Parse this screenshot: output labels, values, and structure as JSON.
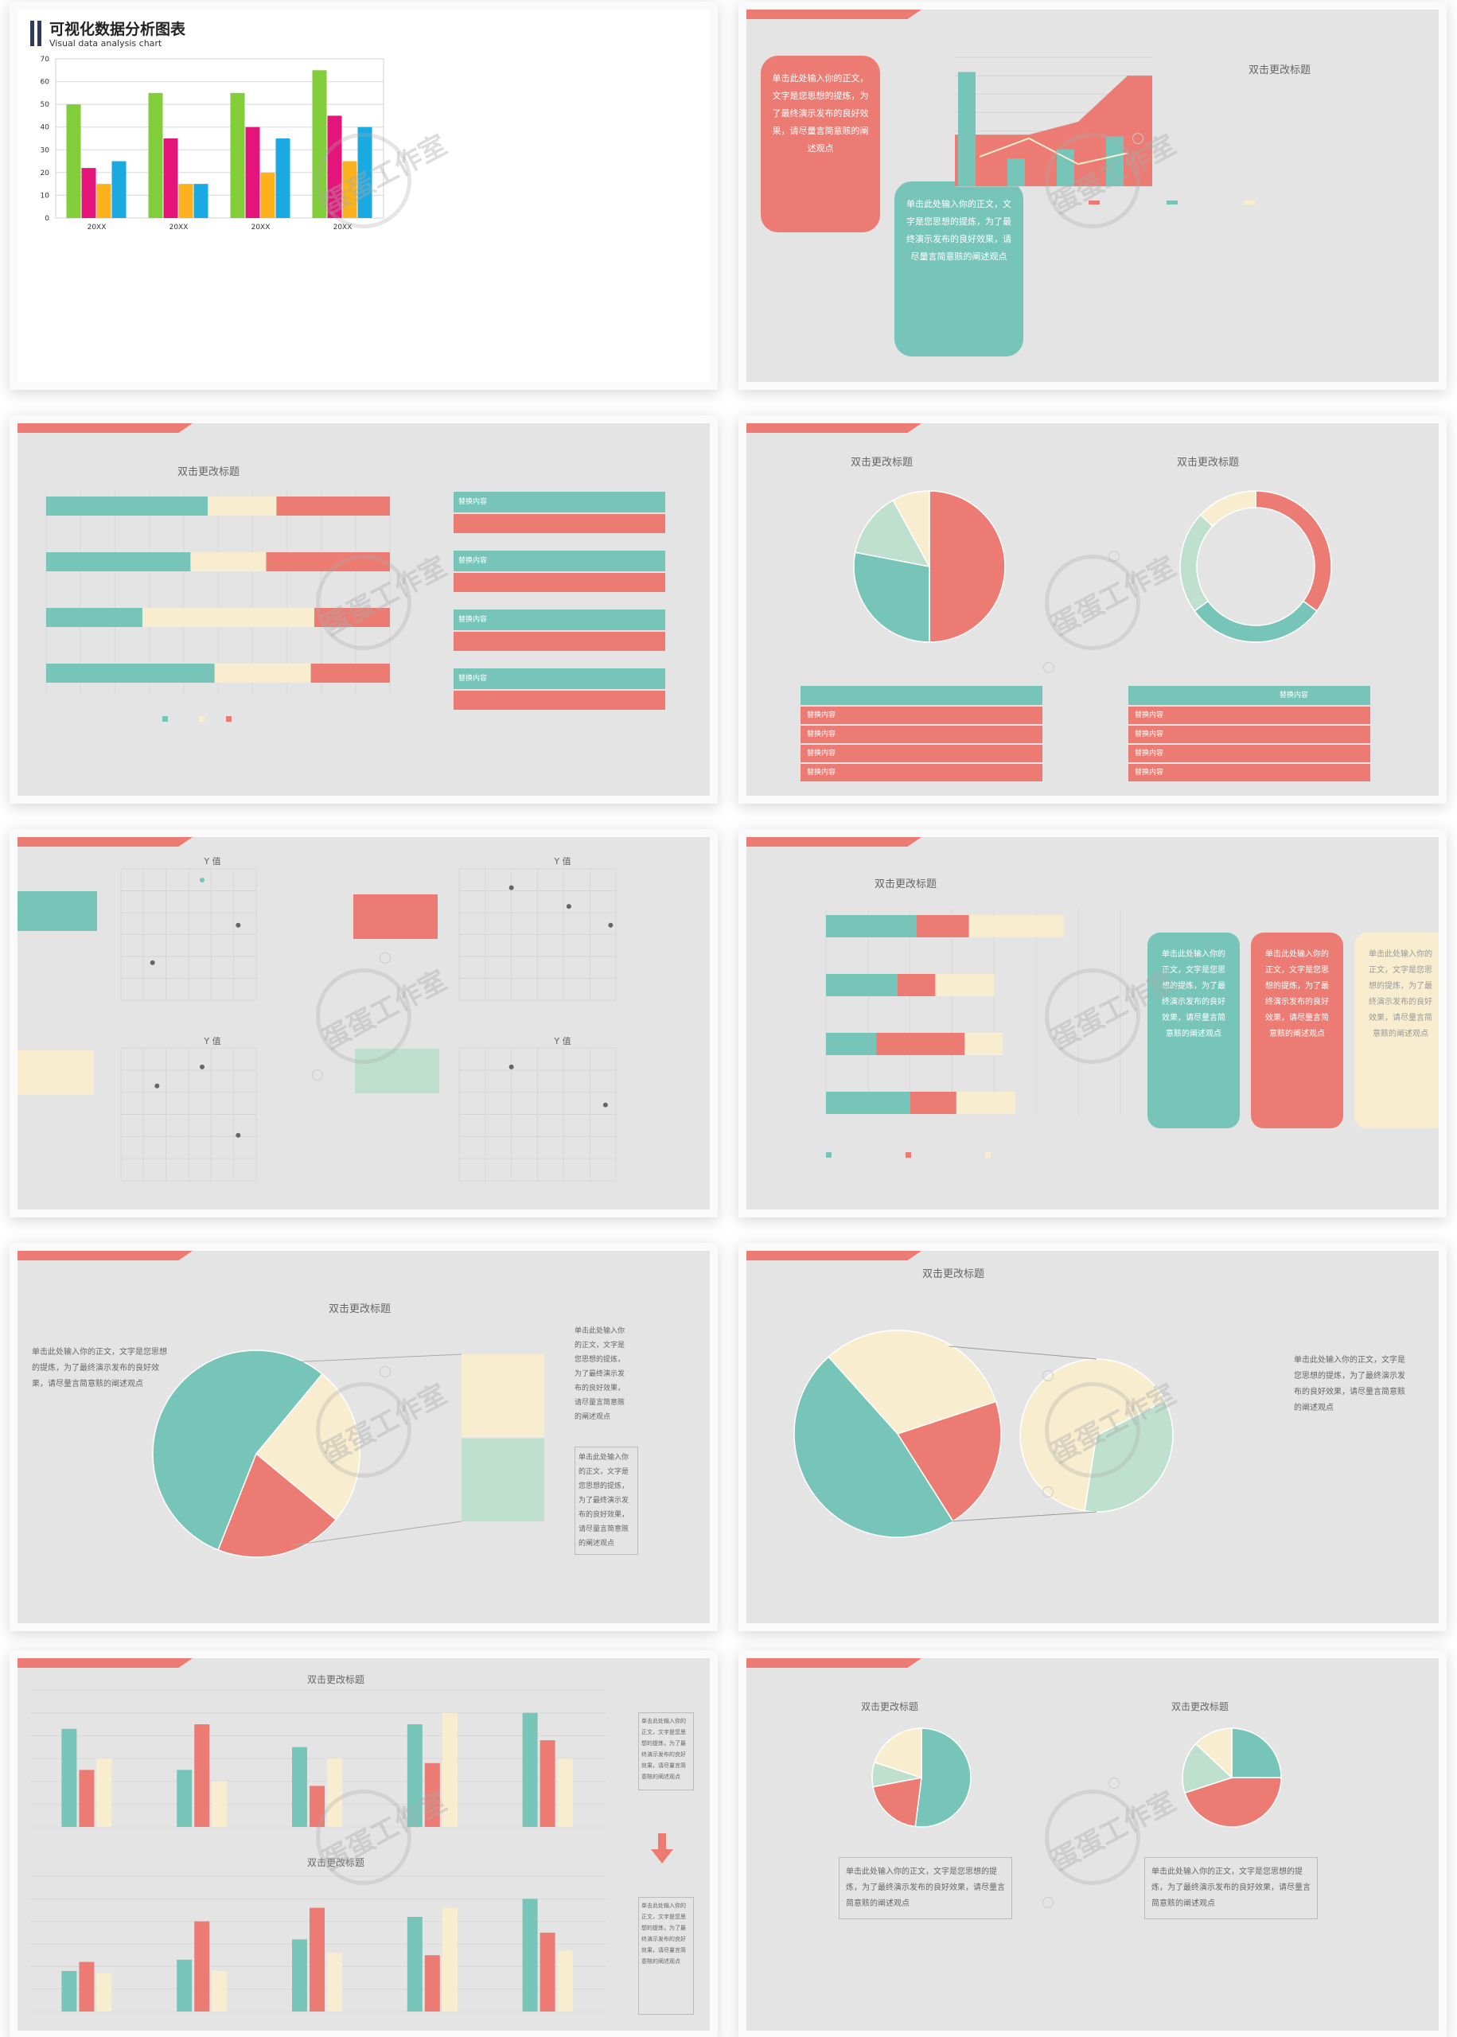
{
  "watermark": "蛋蛋工作室",
  "colors": {
    "teal": "#77c5b9",
    "coral": "#ec7c73",
    "cream": "#f8edcf",
    "mint": "#bfe0cf",
    "green": "#82cd3a",
    "magenta": "#e4157a",
    "orange": "#fbb21c",
    "blue": "#1aa9e0"
  },
  "slides": {
    "s1": {
      "title": "可视化数据分析图表",
      "subtitle": "Visual data analysis chart"
    },
    "s2": {
      "title": "双击更改标题",
      "bubble_coral": "单击此处输入你的正文，文字是您思想的提炼，为了最终演示发布的良好效果，请尽量言简意赅的阐述观点",
      "bubble_teal": "单击此处输入你的正文，文字是您思想的提炼，为了最终演示发布的良好效果，请尽量言简意赅的阐述观点"
    },
    "s3": {
      "title": "双击更改标题",
      "table_header": "替换内容"
    },
    "s4": {
      "title_left": "双击更改标题",
      "title_right": "双击更改标题",
      "table_header_right": "替换内容",
      "table_cell": "替换内容"
    },
    "s5": {
      "chart_title": "Y 值"
    },
    "s6": {
      "title": "双击更改标题",
      "card_text": "单击此处输入你的正文，文字是您思想的提炼，为了最终演示发布的良好效果，请尽量言简意赅的阐述观点"
    },
    "s7": {
      "title": "双击更改标题",
      "left_text": "单击此处输入你的正文，文字是您思想的提炼，为了最终演示发布的良好效果，请尽量言简意赅的阐述观点",
      "right_text_1": "单击此处输入你的正文，文字是您思想的提炼，为了最终演示发布的良好效果，请尽量言简意赅的阐述观点",
      "right_text_2": "单击此处输入你的正文，文字是您思想的提炼，为了最终演示发布的良好效果，请尽量言简意赅的阐述观点"
    },
    "s8": {
      "title": "双击更改标题",
      "text": "单击此处输入你的正文，文字是您思想的提炼，为了最终演示发布的良好效果，请尽量言简意赅的阐述观点"
    },
    "s9": {
      "title": "双击更改标题",
      "title2": "双击更改标题",
      "side_text": "单击此处输入你的正文，文字是您思想的提炼，为了最终演示发布的良好效果，请尽量言简意赅的阐述观点"
    },
    "s10": {
      "title_left": "双击更改标题",
      "title_right": "双击更改标题",
      "text_left": "单击此处输入你的正文，文字是您思想的提炼，为了最终演示发布的良好效果，请尽量言简意赅的阐述观点",
      "text_right": "单击此处输入你的正文，文字是您思想的提炼，为了最终演示发布的良好效果，请尽量言简意赅的阐述观点"
    }
  },
  "chart_data": [
    {
      "type": "bar",
      "title": "可视化数据分析图表",
      "categories": [
        "20XX",
        "20XX",
        "20XX",
        "20XX"
      ],
      "series": [
        {
          "values": [
            50,
            55,
            55,
            65
          ],
          "color": "#82cd3a"
        },
        {
          "values": [
            22,
            35,
            40,
            45
          ],
          "color": "#e4157a"
        },
        {
          "values": [
            15,
            15,
            20,
            25
          ],
          "color": "#fbb21c"
        },
        {
          "values": [
            25,
            15,
            35,
            40
          ],
          "color": "#1aa9e0"
        }
      ],
      "ylim": [
        0,
        70
      ],
      "yticks": [
        0,
        10,
        20,
        30,
        40,
        50,
        60,
        70
      ],
      "grid": true
    },
    {
      "type": "bar",
      "title": "双击更改标题",
      "series": [
        {
          "kind": "bar",
          "values": [
            6.2,
            1.5,
            2.0,
            2.7
          ],
          "color": "#77c5b9"
        },
        {
          "kind": "area",
          "values": [
            2.8,
            2.8,
            3.5,
            6.0
          ],
          "color": "#ec7c73"
        },
        {
          "kind": "line",
          "values": [
            1.6,
            2.6,
            1.2,
            1.8
          ],
          "color": "#f8edcf"
        }
      ],
      "ylim": [
        0,
        7
      ]
    },
    {
      "type": "bar",
      "title": "双击更改标题",
      "stacked": "percent",
      "series": [
        {
          "values": [
            47,
            42,
            28,
            49
          ],
          "color": "#77c5b9"
        },
        {
          "values": [
            20,
            22,
            50,
            28
          ],
          "color": "#f8edcf"
        },
        {
          "values": [
            33,
            36,
            22,
            23
          ],
          "color": "#ec7c73"
        }
      ],
      "xlim": [
        0,
        100
      ]
    },
    {
      "type": "pie",
      "title": "双击更改标题",
      "values": [
        50,
        28,
        14,
        8
      ],
      "colors": [
        "#ec7c73",
        "#77c5b9",
        "#bfe0cf",
        "#f8edcf"
      ]
    },
    {
      "type": "pie",
      "title": "双击更改标题",
      "donut": true,
      "values": [
        35,
        30,
        22,
        13
      ],
      "colors": [
        "#ec7c73",
        "#77c5b9",
        "#bfe0cf",
        "#f8edcf"
      ]
    },
    {
      "type": "scatter",
      "title": "Y 值",
      "points": [
        [
          0.7,
          1.0
        ],
        [
          1.8,
          3.2
        ],
        [
          2.6,
          2.0
        ]
      ],
      "xlim": [
        0,
        3
      ],
      "ylim": [
        0,
        3.5
      ]
    },
    {
      "type": "scatter",
      "title": "Y 值",
      "points": [
        [
          1.0,
          3.0
        ],
        [
          2.1,
          2.5
        ],
        [
          2.9,
          2.0
        ]
      ],
      "xlim": [
        0,
        3
      ],
      "ylim": [
        0,
        3.5
      ]
    },
    {
      "type": "scatter",
      "title": "Y 值",
      "points": [
        [
          0.8,
          2.5
        ],
        [
          1.8,
          3.0
        ],
        [
          2.6,
          1.2
        ]
      ],
      "xlim": [
        0,
        3
      ],
      "ylim": [
        0,
        3.5
      ]
    },
    {
      "type": "scatter",
      "title": "Y 值",
      "points": [
        [
          1.0,
          3.0
        ],
        [
          2.8,
          2.0
        ]
      ],
      "xlim": [
        0,
        3
      ],
      "ylim": [
        0,
        3.5
      ]
    },
    {
      "type": "bar",
      "title": "双击更改标题",
      "stacked": true,
      "horizontal": true,
      "series": [
        {
          "values": [
            4.3,
            3.4,
            2.4,
            4.0
          ],
          "color": "#77c5b9"
        },
        {
          "values": [
            2.5,
            1.8,
            4.2,
            2.2
          ],
          "color": "#ec7c73"
        },
        {
          "values": [
            4.5,
            2.8,
            1.8,
            2.8
          ],
          "color": "#f8edcf"
        }
      ],
      "xlim": [
        0,
        14
      ]
    },
    {
      "type": "pie",
      "title": "双击更改标题",
      "values": [
        55,
        25,
        20
      ],
      "colors": [
        "#77c5b9",
        "#f8edcf",
        "#ec7c73"
      ]
    },
    {
      "type": "pie",
      "title": "双击更改标题",
      "values": [
        45,
        30,
        20
      ],
      "colors": [
        "#77c5b9",
        "#f8edcf",
        "#ec7c73"
      ]
    },
    {
      "type": "pie",
      "values": [
        65,
        35
      ],
      "colors": [
        "#f8edcf",
        "#bfe0cf"
      ]
    },
    {
      "type": "bar",
      "title": "双击更改标题",
      "series": [
        {
          "values": [
            4.3,
            2.5,
            3.5,
            4.5,
            5.0
          ],
          "color": "#77c5b9"
        },
        {
          "values": [
            2.5,
            4.5,
            1.8,
            2.8,
            3.8
          ],
          "color": "#ec7c73"
        },
        {
          "values": [
            3.0,
            2.0,
            3.0,
            5.0,
            3.0
          ],
          "color": "#f8edcf"
        }
      ],
      "ylim": [
        0,
        6
      ]
    },
    {
      "type": "bar",
      "title": "双击更改标题",
      "series": [
        {
          "values": [
            1.8,
            2.3,
            3.2,
            4.2,
            5.0
          ],
          "color": "#77c5b9"
        },
        {
          "values": [
            2.2,
            4.0,
            4.6,
            2.5,
            3.5
          ],
          "color": "#ec7c73"
        },
        {
          "values": [
            1.7,
            1.8,
            2.6,
            4.6,
            2.7
          ],
          "color": "#f8edcf"
        }
      ],
      "ylim": [
        0,
        6
      ]
    },
    {
      "type": "pie",
      "title": "双击更改标题",
      "values": [
        52,
        20,
        8,
        20
      ],
      "colors": [
        "#77c5b9",
        "#ec7c73",
        "#bfe0cf",
        "#f8edcf"
      ]
    },
    {
      "type": "pie",
      "title": "双击更改标题",
      "values": [
        25,
        45,
        17,
        13
      ],
      "colors": [
        "#77c5b9",
        "#ec7c73",
        "#bfe0cf",
        "#f8edcf"
      ]
    }
  ]
}
